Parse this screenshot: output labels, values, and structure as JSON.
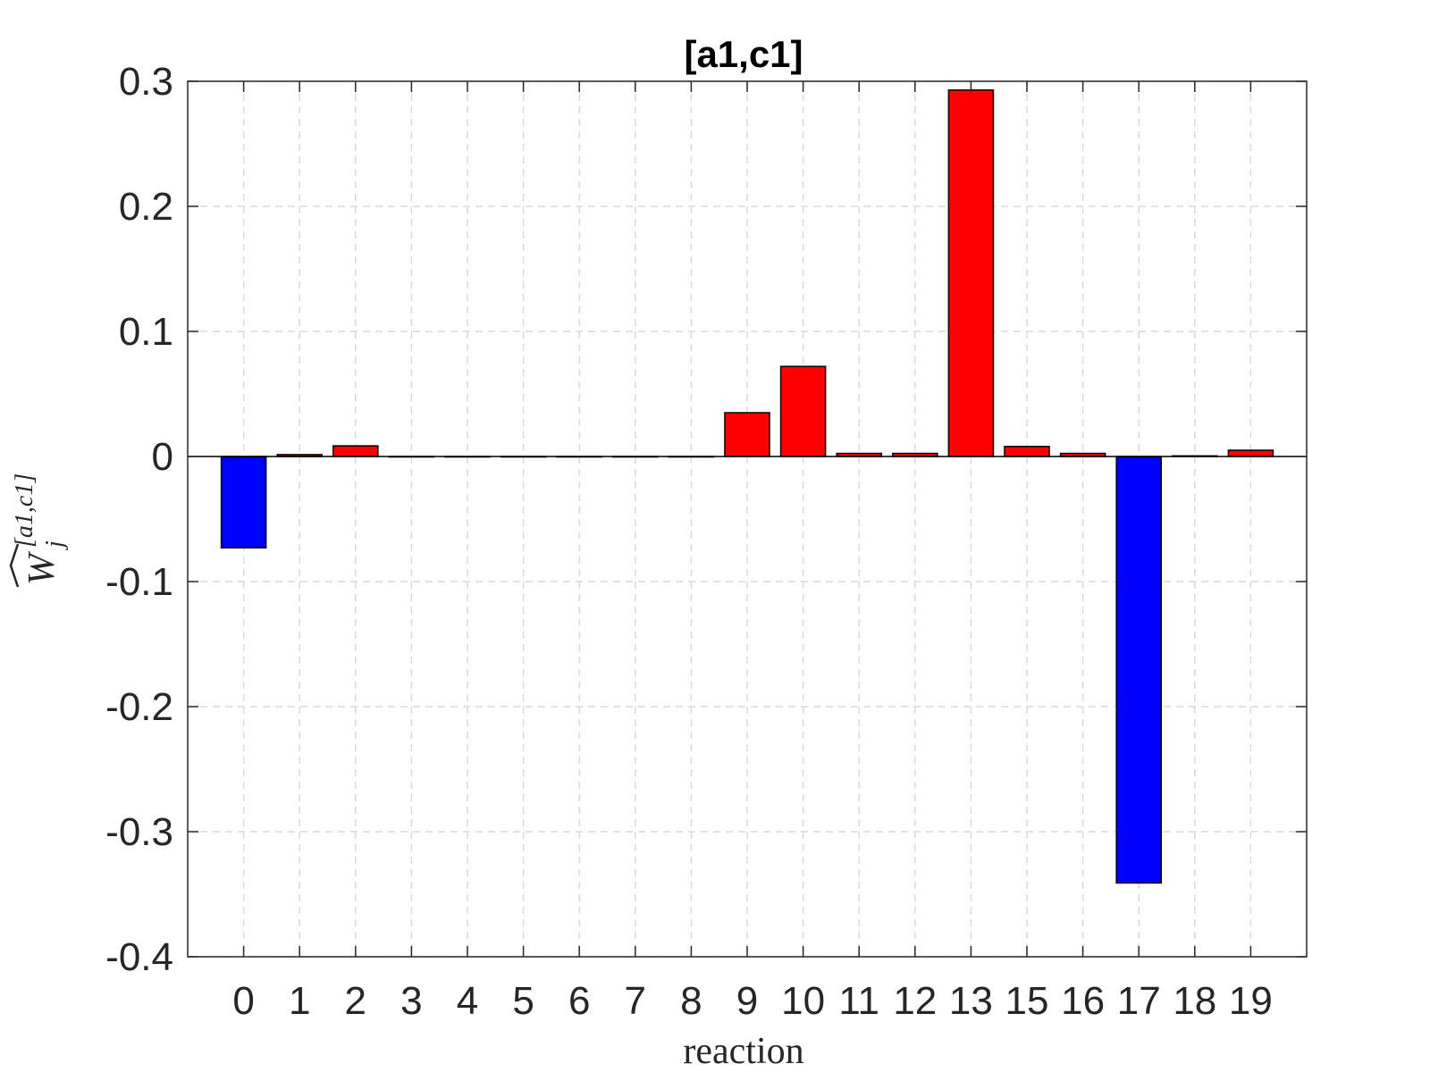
{
  "chart_data": {
    "type": "bar",
    "title": "[a1,c1]",
    "xlabel": "reaction",
    "ylabel": {
      "base": "W",
      "subscript": "j",
      "superscript": "[a1,c1]"
    },
    "categories": [
      "0",
      "1",
      "2",
      "3",
      "4",
      "5",
      "6",
      "7",
      "8",
      "9",
      "10",
      "11",
      "12",
      "13",
      "15",
      "16",
      "17",
      "18",
      "19"
    ],
    "values": [
      -0.073,
      0.0015,
      0.0085,
      0,
      0,
      0,
      0,
      0,
      0,
      0.035,
      0.072,
      0.0025,
      0.0025,
      0.293,
      0.008,
      0.0025,
      -0.341,
      0.0005,
      0.005
    ],
    "ylim": [
      -0.4,
      0.3
    ],
    "yticks": [
      0.3,
      0.2,
      0.1,
      0,
      -0.1,
      -0.2,
      -0.3,
      -0.4
    ],
    "ytick_labels": [
      "0.3",
      "0.2",
      "0.1",
      "0",
      "-0.1",
      "-0.2",
      "-0.3",
      "-0.4"
    ],
    "grid": true,
    "colors": {
      "positive": "#ff0000",
      "negative": "#0000ff",
      "bar_edge": "#000000",
      "axis": "#262626",
      "grid": "#d9d9d9"
    }
  }
}
